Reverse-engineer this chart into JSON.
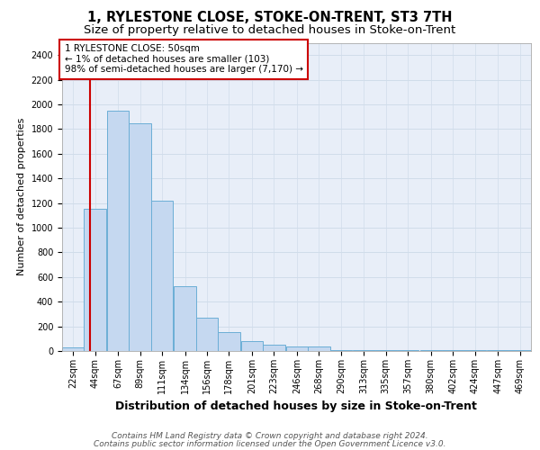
{
  "title": "1, RYLESTONE CLOSE, STOKE-ON-TRENT, ST3 7TH",
  "subtitle": "Size of property relative to detached houses in Stoke-on-Trent",
  "xlabel": "Distribution of detached houses by size in Stoke-on-Trent",
  "ylabel": "Number of detached properties",
  "bins": [
    22,
    44,
    67,
    89,
    111,
    134,
    156,
    178,
    201,
    223,
    246,
    268,
    290,
    313,
    335,
    357,
    380,
    402,
    424,
    447,
    469
  ],
  "values": [
    30,
    1150,
    1950,
    1850,
    1220,
    525,
    270,
    150,
    80,
    50,
    35,
    35,
    10,
    10,
    8,
    8,
    5,
    5,
    5,
    5,
    5
  ],
  "bar_color": "#c5d8f0",
  "bar_edge_color": "#6baed6",
  "grid_color": "#d0dcea",
  "background_color": "#e8eef8",
  "property_line_x": 50,
  "property_line_color": "#cc0000",
  "annotation_text": "1 RYLESTONE CLOSE: 50sqm\n← 1% of detached houses are smaller (103)\n98% of semi-detached houses are larger (7,170) →",
  "annotation_box_color": "#cc0000",
  "annotation_bg": "#ffffff",
  "ylim": [
    0,
    2500
  ],
  "yticks": [
    0,
    200,
    400,
    600,
    800,
    1000,
    1200,
    1400,
    1600,
    1800,
    2000,
    2200,
    2400
  ],
  "footer_line1": "Contains HM Land Registry data © Crown copyright and database right 2024.",
  "footer_line2": "Contains public sector information licensed under the Open Government Licence v3.0.",
  "title_fontsize": 10.5,
  "subtitle_fontsize": 9.5,
  "xlabel_fontsize": 9,
  "ylabel_fontsize": 8,
  "tick_fontsize": 7,
  "annotation_fontsize": 7.5,
  "footer_fontsize": 6.5
}
